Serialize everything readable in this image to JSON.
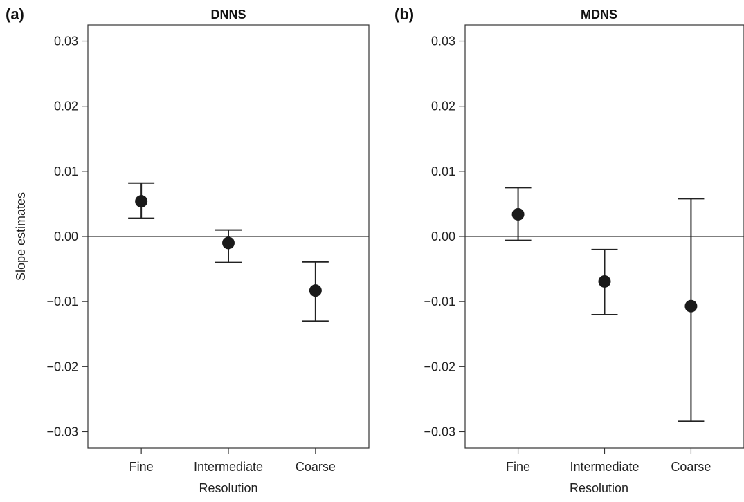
{
  "chart_data": [
    {
      "type": "scatter",
      "panel_letter": "(a)",
      "title": "DNNS",
      "xlabel": "Resolution",
      "ylabel": "Slope estimates",
      "categories": [
        "Fine",
        "Intermediate",
        "Coarse"
      ],
      "ylim": [
        -0.0325,
        0.0325
      ],
      "yticks": [
        0.03,
        0.02,
        0.01,
        0.0,
        -0.01,
        -0.02,
        -0.03
      ],
      "ytick_labels": [
        "0.03",
        "0.02",
        "0.01",
        "0.00",
        "−0.01",
        "−0.02",
        "−0.03"
      ],
      "reference_line": 0,
      "points": [
        {
          "category": "Fine",
          "value": 0.0054,
          "lower": 0.0028,
          "upper": 0.0082
        },
        {
          "category": "Intermediate",
          "value": -0.001,
          "lower": -0.004,
          "upper": 0.001
        },
        {
          "category": "Coarse",
          "value": -0.0083,
          "lower": -0.013,
          "upper": -0.0039
        }
      ]
    },
    {
      "type": "scatter",
      "panel_letter": "(b)",
      "title": "MDNS",
      "xlabel": "Resolution",
      "ylabel": "",
      "categories": [
        "Fine",
        "Intermediate",
        "Coarse"
      ],
      "ylim": [
        -0.0325,
        0.0325
      ],
      "yticks": [
        0.03,
        0.02,
        0.01,
        0.0,
        -0.01,
        -0.02,
        -0.03
      ],
      "ytick_labels": [
        "0.03",
        "0.02",
        "0.01",
        "0.00",
        "−0.01",
        "−0.02",
        "−0.03"
      ],
      "reference_line": 0,
      "points": [
        {
          "category": "Fine",
          "value": 0.0034,
          "lower": -0.0006,
          "upper": 0.0075
        },
        {
          "category": "Intermediate",
          "value": -0.0069,
          "lower": -0.012,
          "upper": -0.002
        },
        {
          "category": "Coarse",
          "value": -0.0107,
          "lower": -0.0284,
          "upper": 0.0058
        }
      ]
    }
  ]
}
